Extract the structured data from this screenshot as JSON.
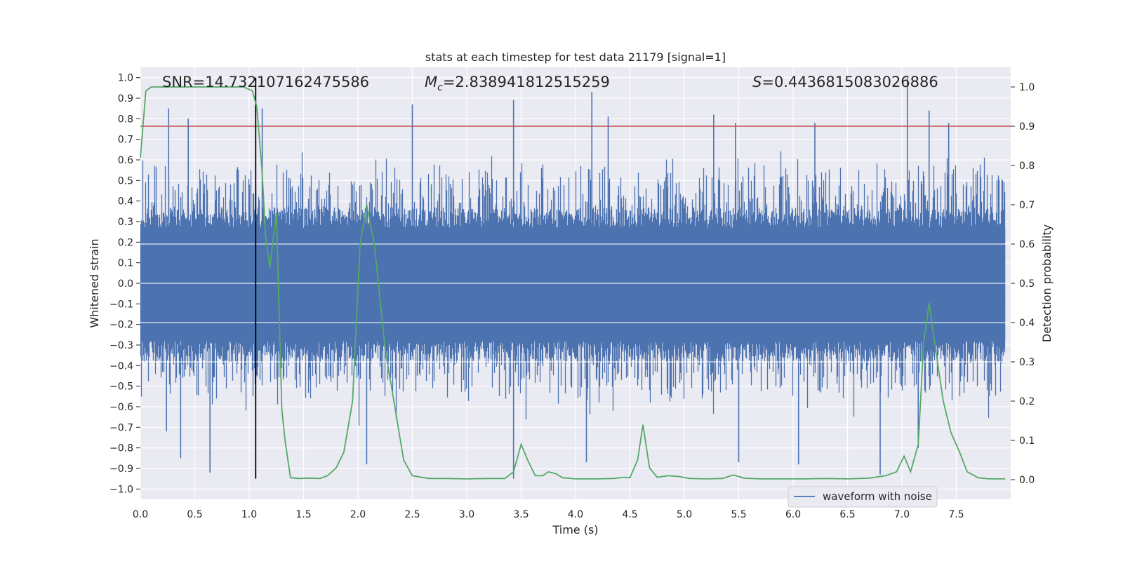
{
  "chart_data": {
    "type": "line",
    "title": "stats at each timestep for test data 21179 [signal=1]",
    "xlabel": "Time (s)",
    "ylabel_left": "Whitened strain",
    "ylabel_right": "Detection probability",
    "xlim": [
      0.0,
      8.0
    ],
    "ylim_left": [
      -1.05,
      1.05
    ],
    "ylim_right": [
      -0.05,
      1.05
    ],
    "x_ticks": [
      "0.0",
      "0.5",
      "1.0",
      "1.5",
      "2.0",
      "2.5",
      "3.0",
      "3.5",
      "4.0",
      "4.5",
      "5.0",
      "5.5",
      "6.0",
      "6.5",
      "7.0",
      "7.5"
    ],
    "y_ticks_left": [
      "1.0",
      "0.9",
      "0.8",
      "0.7",
      "0.6",
      "0.5",
      "0.4",
      "0.3",
      "0.2",
      "0.1",
      "0.0",
      "-0.1",
      "-0.2",
      "-0.3",
      "-0.4",
      "-0.5",
      "-0.6",
      "-0.7",
      "-0.8",
      "-0.9",
      "-1.0"
    ],
    "y_ticks_right": [
      "1.0",
      "0.9",
      "0.8",
      "0.7",
      "0.6",
      "0.5",
      "0.4",
      "0.3",
      "0.2",
      "0.1",
      "0.0"
    ],
    "grid": true,
    "legend": {
      "location": "lower-right",
      "entries": [
        "waveform with noise"
      ]
    },
    "annotations": {
      "snr": "SNR=14.732107162475586",
      "mc_symbol": "M",
      "mc_sub": "c",
      "mc_value": "=2.838941812515259",
      "s_symbol": "S",
      "s_value": "=0.4436815083026886"
    },
    "threshold": {
      "axis": "right",
      "value": 0.9,
      "color": "#c44e52"
    },
    "event_marker": {
      "x": 1.06,
      "y_from": -0.95,
      "y_to": 1.0,
      "color": "#000000"
    },
    "waveform": {
      "name": "waveform with noise",
      "color": "#4c72b0",
      "peaks_positive": [
        [
          0.26,
          0.85
        ],
        [
          0.44,
          0.8
        ],
        [
          1.12,
          0.85
        ],
        [
          2.5,
          0.87
        ],
        [
          3.43,
          0.89
        ],
        [
          4.15,
          0.93
        ],
        [
          4.3,
          0.81
        ],
        [
          5.27,
          0.82
        ],
        [
          5.47,
          0.78
        ],
        [
          6.2,
          0.78
        ],
        [
          7.05,
          1.0
        ],
        [
          7.25,
          0.84
        ],
        [
          7.43,
          0.78
        ]
      ],
      "peaks_negative": [
        [
          0.24,
          -0.72
        ],
        [
          0.37,
          -0.85
        ],
        [
          0.64,
          -0.92
        ],
        [
          2.08,
          -0.88
        ],
        [
          3.43,
          -0.95
        ],
        [
          4.1,
          -0.87
        ],
        [
          5.5,
          -0.87
        ],
        [
          6.05,
          -0.88
        ],
        [
          6.8,
          -0.93
        ],
        [
          7.15,
          -0.8
        ]
      ]
    },
    "detection_probability": {
      "color": "#55a868",
      "x": [
        0.0,
        0.05,
        0.1,
        0.5,
        0.95,
        1.03,
        1.07,
        1.12,
        1.15,
        1.19,
        1.25,
        1.3,
        1.33,
        1.38,
        1.45,
        1.55,
        1.65,
        1.72,
        1.8,
        1.87,
        1.95,
        2.02,
        2.08,
        2.15,
        2.25,
        2.33,
        2.42,
        2.5,
        2.65,
        2.8,
        3.0,
        3.2,
        3.35,
        3.43,
        3.5,
        3.56,
        3.63,
        3.7,
        3.75,
        3.82,
        3.88,
        4.0,
        4.2,
        4.35,
        4.45,
        4.5,
        4.57,
        4.62,
        4.68,
        4.75,
        4.85,
        4.95,
        5.05,
        5.2,
        5.35,
        5.45,
        5.55,
        5.7,
        5.9,
        6.1,
        6.3,
        6.5,
        6.7,
        6.85,
        6.95,
        7.02,
        7.08,
        7.15,
        7.2,
        7.25,
        7.3,
        7.38,
        7.45,
        7.53,
        7.6,
        7.7,
        7.8,
        7.95
      ],
      "y": [
        0.82,
        0.99,
        1.0,
        1.0,
        1.0,
        0.99,
        0.95,
        0.78,
        0.62,
        0.54,
        0.68,
        0.18,
        0.1,
        0.005,
        0.003,
        0.004,
        0.003,
        0.01,
        0.03,
        0.07,
        0.2,
        0.6,
        0.7,
        0.6,
        0.33,
        0.2,
        0.05,
        0.01,
        0.003,
        0.003,
        0.002,
        0.003,
        0.003,
        0.02,
        0.09,
        0.05,
        0.01,
        0.01,
        0.02,
        0.015,
        0.005,
        0.002,
        0.002,
        0.003,
        0.006,
        0.005,
        0.05,
        0.14,
        0.03,
        0.006,
        0.01,
        0.008,
        0.003,
        0.002,
        0.003,
        0.012,
        0.004,
        0.002,
        0.002,
        0.002,
        0.003,
        0.002,
        0.004,
        0.01,
        0.02,
        0.06,
        0.02,
        0.09,
        0.35,
        0.45,
        0.35,
        0.2,
        0.12,
        0.07,
        0.02,
        0.005,
        0.002,
        0.002
      ]
    }
  }
}
